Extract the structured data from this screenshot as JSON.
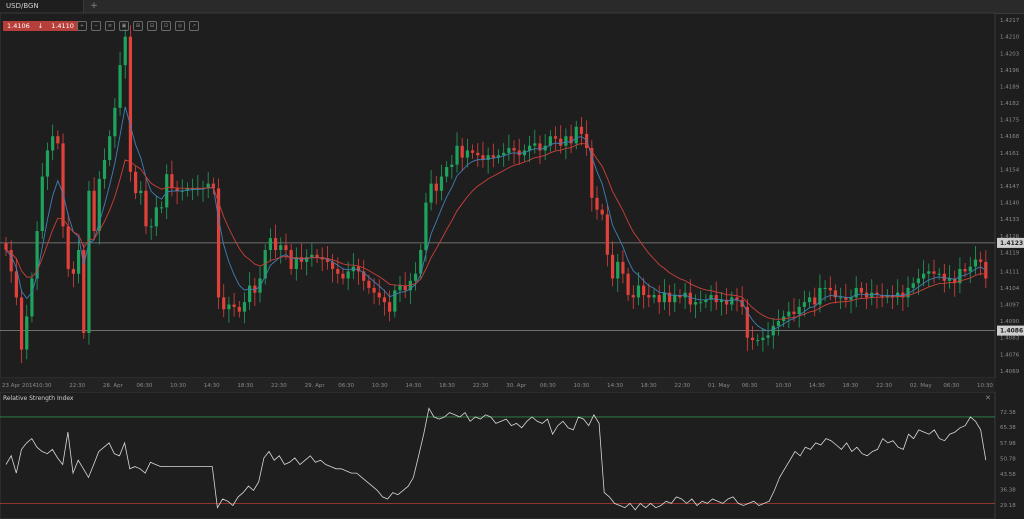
{
  "tab": {
    "label": "USD/BGN",
    "add": "+"
  },
  "quote": {
    "bid": "1.4106",
    "arrow": "↓",
    "ask": "1.4110"
  },
  "toolbar": [
    "+",
    "−",
    "≡",
    "▣",
    "⊞",
    "⊟",
    "⊡",
    "◎",
    "↗"
  ],
  "price_axis": [
    "1.4217",
    "1.4210",
    "1.4203",
    "1.4196",
    "1.4189",
    "1.4182",
    "1.4175",
    "1.4168",
    "1.4161",
    "1.4154",
    "1.4147",
    "1.4140",
    "1.4133",
    "1.4126",
    "1.4119",
    "1.4111",
    "1.4104",
    "1.4097",
    "1.4090",
    "1.4083",
    "1.4076",
    "1.4069"
  ],
  "levels": {
    "upper": "1.4123",
    "lower": "1.4086"
  },
  "time_axis": [
    "23 Apr 2014",
    "10:30",
    "22:30",
    "28. Apr",
    "06:30",
    "10:30",
    "14:30",
    "18:30",
    "22:30",
    "29. Apr",
    "06:30",
    "10:30",
    "14:30",
    "18:30",
    "22:30",
    "30. Apr",
    "06:30",
    "10:30",
    "14:30",
    "18:30",
    "22:30",
    "01. May",
    "06:30",
    "10:30",
    "14:30",
    "18:30",
    "22:30",
    "02. May",
    "06:30",
    "10:30"
  ],
  "rsi": {
    "title": "Relative Strength Index",
    "close": "✕",
    "axis": [
      "72.38",
      "65.38",
      "57.98",
      "50.78",
      "43.58",
      "36.38",
      "29.18"
    ]
  },
  "colors": {
    "up": "#1fa35c",
    "down": "#e0413a",
    "ma_fast": "#3f7fb5",
    "ma_slow": "#c9413b",
    "rsi_line": "#d8d8d8",
    "level_line": "#6a6a6a"
  },
  "chart_data": {
    "type": "candlestick",
    "close": [
      1.412,
      1.4111,
      1.41,
      1.4078,
      1.4092,
      1.4108,
      1.4128,
      1.4151,
      1.4162,
      1.4168,
      1.4165,
      1.413,
      1.4112,
      1.411,
      1.412,
      1.4085,
      1.4145,
      1.4128,
      1.415,
      1.4158,
      1.4168,
      1.418,
      1.4198,
      1.421,
      1.4153,
      1.4144,
      1.4145,
      1.413,
      1.413,
      1.4138,
      1.4138,
      1.4152,
      1.4146,
      1.4145,
      1.4145,
      1.4146,
      1.4146,
      1.4146,
      1.4146,
      1.4148,
      1.4146,
      1.41,
      1.4095,
      1.4097,
      1.4096,
      1.4094,
      1.4098,
      1.4105,
      1.4102,
      1.4108,
      1.412,
      1.4125,
      1.412,
      1.4122,
      1.412,
      1.4112,
      1.4117,
      1.4115,
      1.4117,
      1.4118,
      1.4117,
      1.4116,
      1.4115,
      1.4112,
      1.411,
      1.4108,
      1.4111,
      1.4113,
      1.4111,
      1.4107,
      1.4104,
      1.4102,
      1.41,
      1.4098,
      1.4094,
      1.4103,
      1.4105,
      1.4103,
      1.4107,
      1.411,
      1.412,
      1.414,
      1.4148,
      1.4145,
      1.4151,
      1.4155,
      1.4156,
      1.4164,
      1.4159,
      1.4162,
      1.4161,
      1.416,
      1.4158,
      1.416,
      1.4159,
      1.416,
      1.4161,
      1.4163,
      1.4162,
      1.416,
      1.4162,
      1.4164,
      1.4165,
      1.4162,
      1.4164,
      1.4168,
      1.4167,
      1.4164,
      1.4168,
      1.4165,
      1.4172,
      1.4169,
      1.4163,
      1.4142,
      1.4137,
      1.4135,
      1.4118,
      1.4108,
      1.4115,
      1.411,
      1.4101,
      1.41,
      1.4105,
      1.4101,
      1.41,
      1.4101,
      1.4098,
      1.4102,
      1.4098,
      1.4101,
      1.41,
      1.4102,
      1.4097,
      1.4098,
      1.4098,
      1.4099,
      1.4101,
      1.4098,
      1.4099,
      1.4097,
      1.41,
      1.4099,
      1.4096,
      1.4083,
      1.4082,
      1.4082,
      1.4083,
      1.4084,
      1.4088,
      1.409,
      1.4092,
      1.4094,
      1.4093,
      1.4096,
      1.4098,
      1.41,
      1.4097,
      1.4104,
      1.4104,
      1.4103,
      1.41,
      1.41,
      1.4099,
      1.41,
      1.4104,
      1.4102,
      1.41,
      1.4102,
      1.4101,
      1.41,
      1.4101,
      1.41,
      1.4102,
      1.41,
      1.4104,
      1.4106,
      1.4108,
      1.411,
      1.4111,
      1.411,
      1.411,
      1.4107,
      1.4108,
      1.4106,
      1.4112,
      1.4111,
      1.4113,
      1.4116,
      1.4115,
      1.4108
    ],
    "ma_fast_period": "",
    "ma_slow_period": "",
    "rsi_values": [
      48,
      52,
      44,
      55,
      58,
      60,
      56,
      54,
      53,
      55,
      51,
      48,
      63,
      44,
      50,
      46,
      42,
      48,
      54,
      56,
      58,
      53,
      52,
      58,
      46,
      47,
      46,
      44,
      49,
      48,
      47,
      47,
      47,
      47,
      47,
      47,
      47,
      47,
      47,
      47,
      47,
      28,
      32,
      31,
      29,
      33,
      35,
      38,
      36,
      40,
      51,
      54,
      50,
      52,
      48,
      49,
      51,
      48,
      50,
      52,
      49,
      50,
      48,
      47,
      46,
      46,
      45,
      44,
      44,
      42,
      40,
      38,
      36,
      33,
      32,
      35,
      34,
      36,
      38,
      42,
      52,
      62,
      74,
      70,
      69,
      70,
      72,
      71,
      70,
      72,
      68,
      70,
      69,
      71,
      70,
      67,
      68,
      69,
      66,
      67,
      65,
      68,
      70,
      68,
      67,
      69,
      62,
      66,
      68,
      65,
      64,
      70,
      69,
      66,
      71,
      67,
      35,
      33,
      30,
      29,
      28,
      30,
      27,
      30,
      28,
      30,
      28,
      29,
      31,
      30,
      33,
      32,
      30,
      32,
      29,
      31,
      30,
      32,
      31,
      30,
      32,
      33,
      30,
      29,
      30,
      31,
      29,
      30,
      31,
      36,
      42,
      46,
      50,
      54,
      52,
      56,
      55,
      58,
      57,
      60,
      59,
      57,
      55,
      58,
      54,
      56,
      53,
      52,
      54,
      55,
      60,
      58,
      59,
      56,
      55,
      62,
      60,
      64,
      63,
      62,
      64,
      60,
      59,
      62,
      63,
      65,
      66,
      70,
      68,
      64,
      50
    ]
  }
}
